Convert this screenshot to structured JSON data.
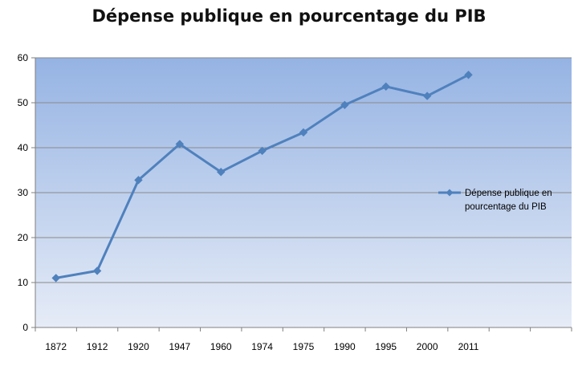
{
  "chart_data": {
    "type": "line",
    "title": "Dépense publique en pourcentage du PIB",
    "categories": [
      "1872",
      "1912",
      "1920",
      "1947",
      "1960",
      "1974",
      "1975",
      "1990",
      "1995",
      "2000",
      "2011"
    ],
    "series": [
      {
        "name": "Dépense publique en pourcentage du PIB",
        "values": [
          11,
          12.6,
          32.8,
          40.8,
          34.6,
          39.3,
          43.4,
          49.5,
          53.6,
          51.5,
          56.2
        ],
        "color": "#4f81bd"
      }
    ],
    "ylim": [
      0,
      60
    ],
    "yticks": [
      0,
      10,
      20,
      30,
      40,
      50,
      60
    ],
    "grid": true,
    "legend_position": "right",
    "plot_gradient": [
      "#95b3e3",
      "#e6ecf7"
    ]
  }
}
